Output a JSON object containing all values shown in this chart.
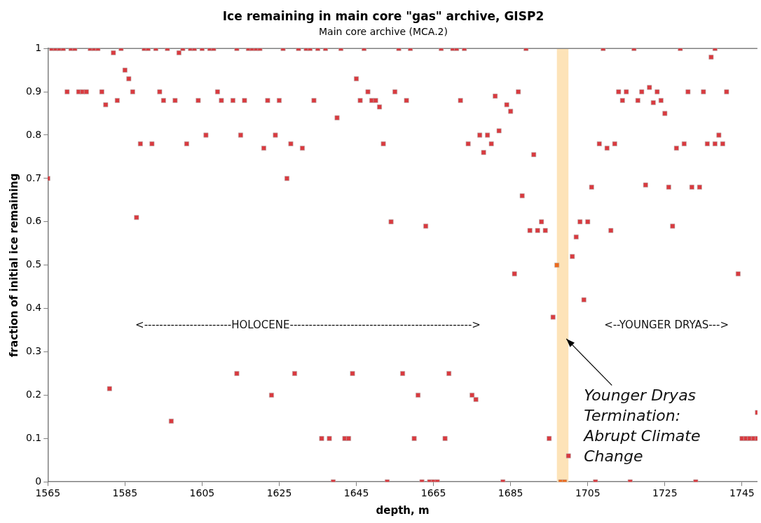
{
  "chart_data": {
    "type": "scatter",
    "title": "Ice remaining in main core \"gas\" archive, GISP2",
    "subtitle": "Main core archive (MCA.2)",
    "xlabel": "depth, m",
    "ylabel": "fraction of initial ice remaining",
    "xlim": [
      1565,
      1749
    ],
    "xticks": [
      1565,
      1585,
      1605,
      1625,
      1645,
      1665,
      1685,
      1705,
      1725,
      1745
    ],
    "ylim": [
      0,
      1
    ],
    "yticks": [
      0,
      0.1,
      0.2,
      0.3,
      0.4,
      0.5,
      0.6,
      0.7,
      0.8,
      0.9,
      1
    ],
    "grid": false,
    "legend": false,
    "marker": "square",
    "series": [
      {
        "color": "#d93a3f",
        "x": [
          1565,
          1566,
          1567,
          1568,
          1569,
          1570,
          1571,
          1572,
          1573,
          1574,
          1575,
          1576,
          1577,
          1578,
          1579,
          1580,
          1581,
          1582,
          1583,
          1584,
          1585,
          1586,
          1587,
          1588,
          1589,
          1590,
          1591,
          1592,
          1593,
          1594,
          1595,
          1596,
          1597,
          1598,
          1599,
          1600,
          1601,
          1602,
          1603,
          1604,
          1605,
          1606,
          1607,
          1608,
          1609,
          1610,
          1613,
          1614,
          1614,
          1615,
          1616,
          1617,
          1618,
          1619,
          1620,
          1621,
          1622,
          1623,
          1624,
          1625,
          1626,
          1627,
          1628,
          1629,
          1630,
          1631,
          1632,
          1633,
          1634,
          1635,
          1636,
          1637,
          1638,
          1639,
          1640,
          1641,
          1642,
          1643,
          1644,
          1645,
          1646,
          1647,
          1648,
          1649,
          1650,
          1651,
          1652,
          1653,
          1654,
          1655,
          1656,
          1657,
          1658,
          1659,
          1660,
          1661,
          1662,
          1663,
          1664,
          1665,
          1666,
          1667,
          1668,
          1669,
          1670,
          1671,
          1672,
          1673,
          1674,
          1675,
          1676,
          1677,
          1678,
          1679,
          1680,
          1681,
          1682,
          1683,
          1684,
          1685,
          1686,
          1687,
          1688,
          1689,
          1690,
          1691,
          1692,
          1693,
          1694,
          1695,
          1696,
          1700,
          1701,
          1702,
          1703,
          1704,
          1705,
          1706,
          1707,
          1708,
          1709,
          1710,
          1711,
          1712,
          1713,
          1714,
          1715,
          1716,
          1717,
          1718,
          1719,
          1720,
          1721,
          1722,
          1723,
          1724,
          1725,
          1726,
          1727,
          1728,
          1729,
          1730,
          1731,
          1732,
          1733,
          1734,
          1735,
          1736,
          1737,
          1738,
          1738,
          1739,
          1740,
          1741,
          1744,
          1745,
          1746,
          1747,
          1748,
          1749,
          1749
        ],
        "values": [
          0.7,
          1,
          1,
          1,
          1,
          0.9,
          1,
          1,
          0.9,
          0.9,
          0.9,
          1,
          1,
          1,
          0.9,
          0.87,
          0.215,
          0.99,
          0.88,
          1,
          0.95,
          0.93,
          0.9,
          0.61,
          0.78,
          1,
          1,
          0.78,
          1,
          0.9,
          0.88,
          1,
          0.14,
          0.88,
          0.99,
          1,
          0.78,
          1,
          1,
          0.88,
          1,
          0.8,
          1,
          1,
          0.9,
          0.88,
          0.88,
          1,
          0.25,
          0.8,
          0.88,
          1,
          1,
          1,
          1,
          0.77,
          0.88,
          0.2,
          0.8,
          0.88,
          1,
          0.7,
          0.78,
          0.25,
          1,
          0.77,
          1,
          1,
          0.88,
          1,
          0.1,
          1,
          0.1,
          0,
          0.84,
          1,
          0.1,
          0.1,
          0.25,
          0.93,
          0.88,
          1,
          0.9,
          0.88,
          0.88,
          0.865,
          0.78,
          0,
          0.6,
          0.9,
          1,
          0.25,
          0.88,
          1,
          0.1,
          0.2,
          0,
          0.59,
          0,
          0,
          0,
          1,
          0.1,
          0.25,
          1,
          1,
          0.88,
          1,
          0.78,
          0.2,
          0.19,
          0.8,
          0.76,
          0.8,
          0.78,
          0.89,
          0.81,
          0,
          0.87,
          0.855,
          0.48,
          0.9,
          0.66,
          1,
          0.58,
          0.755,
          0.58,
          0.6,
          0.58,
          0.1,
          0.38,
          0.06,
          0.52,
          0.565,
          0.6,
          0.42,
          0.6,
          0.68,
          0,
          0.78,
          1,
          0.77,
          0.58,
          0.78,
          0.9,
          0.88,
          0.9,
          0,
          1,
          0.88,
          0.9,
          0.685,
          0.91,
          0.875,
          0.9,
          0.88,
          0.85,
          0.68,
          0.59,
          0.77,
          1,
          0.78,
          0.9,
          0.68,
          0,
          0.68,
          0.9,
          0.78,
          0.98,
          1,
          0.78,
          0.8,
          0.78,
          0.9,
          0.48,
          0.1,
          0.1,
          0.1,
          0.1,
          0.1,
          0.16
        ]
      },
      {
        "color": "#ee6a1c",
        "x": [
          1697,
          1698,
          1699
        ],
        "values": [
          0.5,
          0,
          0
        ]
      }
    ],
    "bands": [
      {
        "axis": "x",
        "from": 1697,
        "to": 1700,
        "color": "#fde3b8",
        "label": "Younger Dryas Termination: Abrupt Climate Change"
      }
    ],
    "annotations": [
      "<-----------------------HOLOCENE------------------------------------------------>",
      "<--YOUNGER DRYAS--->"
    ]
  }
}
